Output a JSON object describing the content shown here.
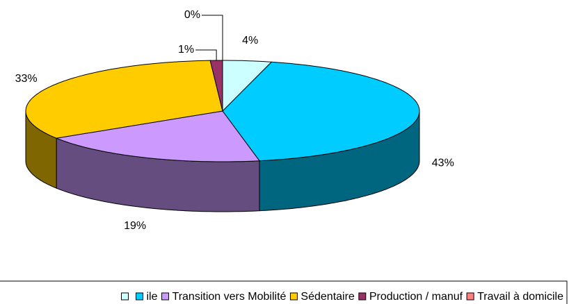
{
  "chart_data": {
    "type": "pie3d",
    "categories": [
      null,
      "ile",
      "Transition vers Mobilité",
      "Sédentaire",
      "Production / manuf",
      "Travail à domicile"
    ],
    "values": [
      4,
      43,
      19,
      33,
      1,
      0
    ],
    "value_labels": [
      "4%",
      "43%",
      "19%",
      "33%",
      "1%",
      "0%"
    ],
    "colors": [
      "#ccffff",
      "#00ccff",
      "#cc99ff",
      "#ffcc00",
      "#993366",
      "#ff8080"
    ],
    "legend": "bottom"
  }
}
